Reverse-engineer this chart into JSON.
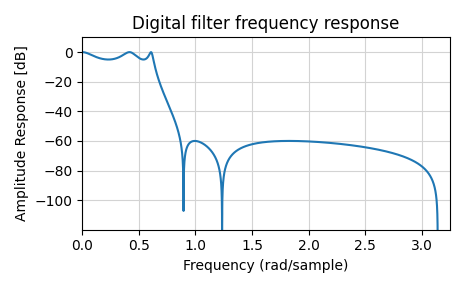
{
  "title": "Digital filter frequency response",
  "xlabel": "Frequency (rad/sample)",
  "ylabel": "Amplitude Response [dB]",
  "line_color": "#1f77b4",
  "line_width": 1.5,
  "xlim": [
    0.0,
    3.25
  ],
  "ylim": [
    -120,
    10
  ],
  "yticks": [
    0,
    -20,
    -40,
    -60,
    -80,
    -100
  ],
  "xticks": [
    0.0,
    0.5,
    1.0,
    1.5,
    2.0,
    2.5,
    3.0
  ],
  "grid": true,
  "figsize": [
    4.65,
    2.88
  ],
  "dpi": 100,
  "N": 5,
  "rp": 5,
  "rs": 60,
  "Wn": 0.2
}
